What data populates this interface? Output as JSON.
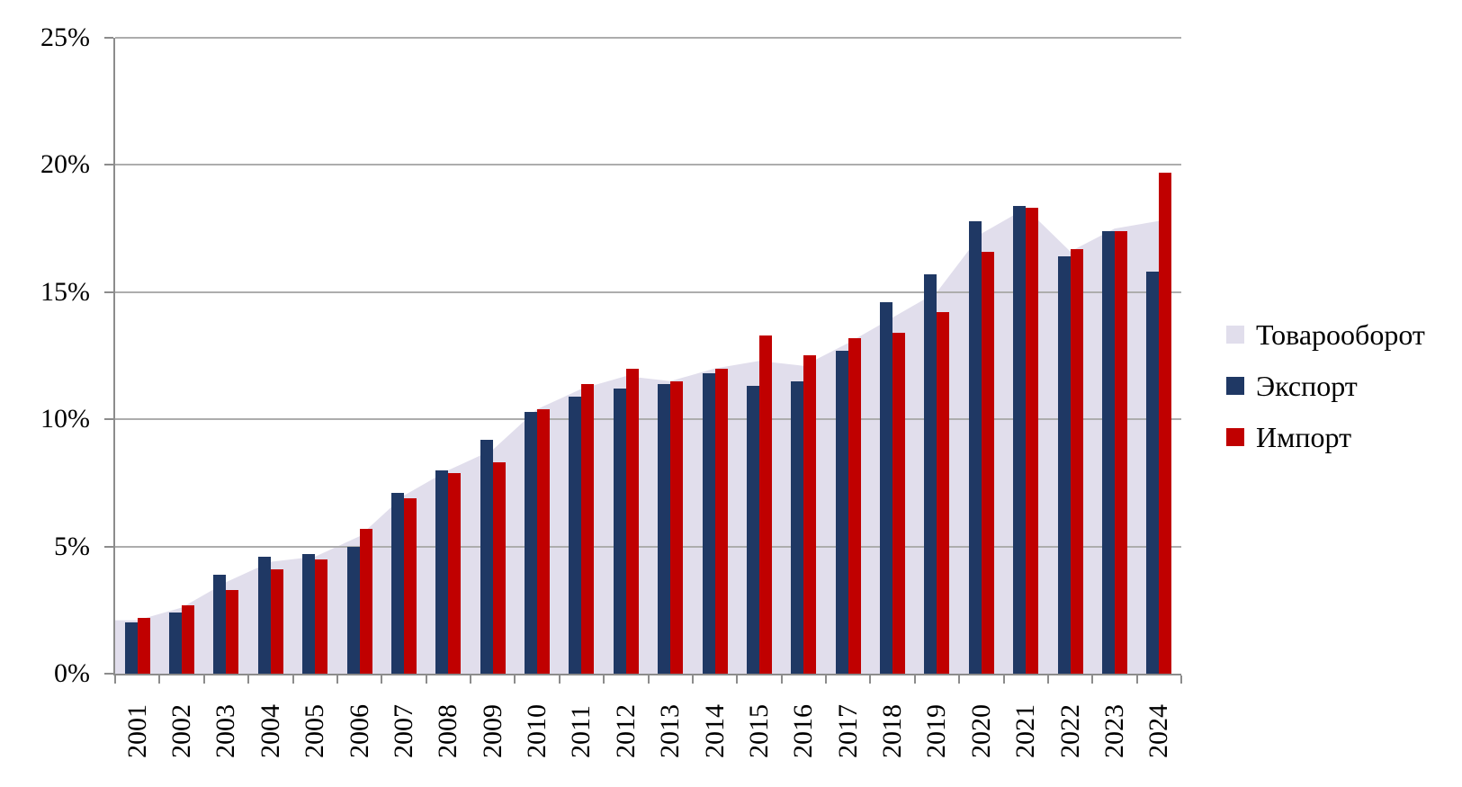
{
  "chart_data": {
    "type": "bar",
    "subtype": "area-plus-grouped-bars",
    "title": "",
    "xlabel": "",
    "ylabel": "",
    "categories": [
      "2001",
      "2002",
      "2003",
      "2004",
      "2005",
      "2006",
      "2007",
      "2008",
      "2009",
      "2010",
      "2011",
      "2012",
      "2013",
      "2014",
      "2015",
      "2016",
      "2017",
      "2018",
      "2019",
      "2020",
      "2021",
      "2022",
      "2023",
      "2024"
    ],
    "series": [
      {
        "name": "Товарооборот",
        "type": "area",
        "color": "#e1deec",
        "values": [
          2.1,
          2.6,
          3.6,
          4.4,
          4.6,
          5.4,
          7.0,
          8.0,
          8.8,
          10.4,
          11.2,
          11.7,
          11.5,
          12.0,
          12.3,
          12.1,
          13.0,
          14.0,
          15.0,
          17.3,
          18.3,
          16.6,
          17.5,
          17.8
        ]
      },
      {
        "name": "Экспорт",
        "type": "bar",
        "color": "#1f3864",
        "values": [
          2.0,
          2.4,
          3.9,
          4.6,
          4.7,
          5.0,
          7.1,
          8.0,
          9.2,
          10.3,
          10.9,
          11.2,
          11.4,
          11.8,
          11.3,
          11.5,
          12.7,
          14.6,
          15.7,
          17.8,
          18.4,
          16.4,
          17.4,
          15.8
        ]
      },
      {
        "name": "Импорт",
        "type": "bar",
        "color": "#c00000",
        "values": [
          2.2,
          2.7,
          3.3,
          4.1,
          4.5,
          5.7,
          6.9,
          7.9,
          8.3,
          10.4,
          11.4,
          12.0,
          11.5,
          12.0,
          13.3,
          12.5,
          13.2,
          13.4,
          14.2,
          16.6,
          18.3,
          16.7,
          17.4,
          19.7
        ]
      }
    ],
    "ylim": [
      0,
      25
    ],
    "yticks": [
      0,
      5,
      10,
      15,
      20,
      25
    ],
    "ytick_suffix": "%",
    "grid": true,
    "legend_position": "right",
    "colors": {
      "gridline": "#adadad",
      "axis": "#8c8c8c",
      "background": "#ffffff",
      "text": "#000000"
    }
  }
}
